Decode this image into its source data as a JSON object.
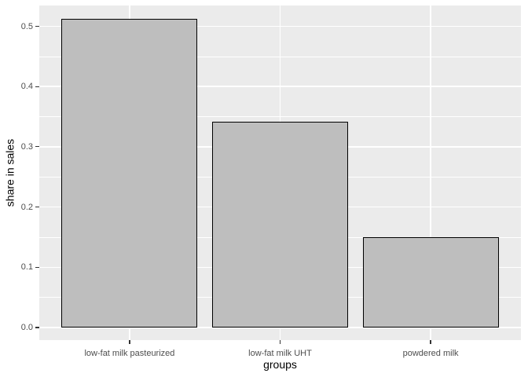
{
  "chart_data": {
    "type": "bar",
    "categories": [
      "low-fat milk pasteurized",
      "low-fat milk UHT",
      "powdered milk"
    ],
    "values": [
      0.512,
      0.342,
      0.15
    ],
    "title": "",
    "xlabel": "groups",
    "ylabel": "share in sales",
    "ylim": [
      -0.021,
      0.535
    ],
    "yticks": [
      0.0,
      0.1,
      0.2,
      0.3,
      0.4,
      0.5
    ],
    "ytick_labels": [
      "0.0",
      "0.1",
      "0.2",
      "0.3",
      "0.4",
      "0.5"
    ],
    "minor_yticks": [
      0.05,
      0.15,
      0.25,
      0.35,
      0.45
    ],
    "grid": "major and minor horizontal white gridlines, major vertical gridline at each category center",
    "legend_position": "none",
    "bar_relative_width": 0.9
  },
  "style": {
    "page_bg": "#FFFFFF",
    "panel_bg": "#EBEBEB",
    "grid_color": "#FFFFFF",
    "bar_fill": "#BEBEBE",
    "bar_border": "#000000",
    "tick_mark_color": "#333333",
    "axis_text_color": "#4D4D4D",
    "axis_title_color": "#000000"
  }
}
